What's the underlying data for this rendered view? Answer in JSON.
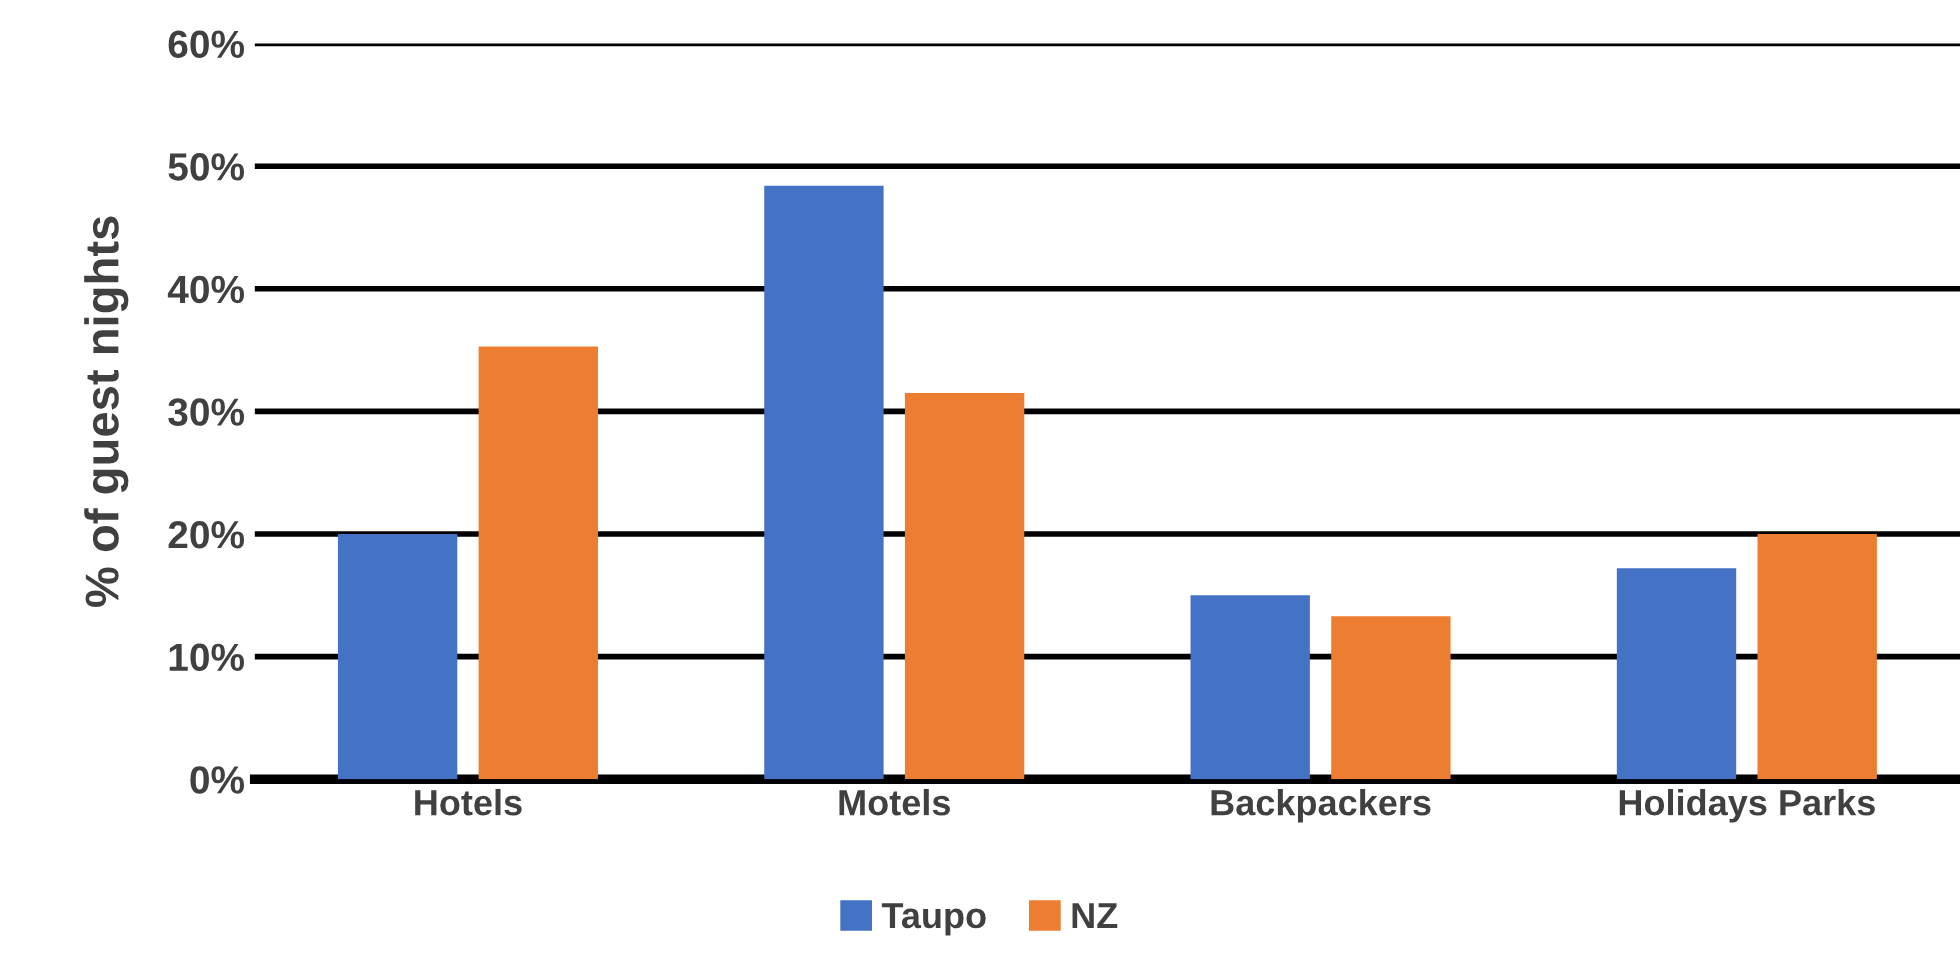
{
  "chart_data": {
    "type": "bar",
    "ylabel": "% of guest nights",
    "categories": [
      "Hotels",
      "Motels",
      "Backpackers",
      "Holidays Parks"
    ],
    "series": [
      {
        "name": "Taupo",
        "color": "#4472c4",
        "values": [
          20,
          48.4,
          15,
          17.2
        ]
      },
      {
        "name": "NZ",
        "color": "#ed7d31",
        "values": [
          35.3,
          31.5,
          13.3,
          20
        ]
      }
    ],
    "ylim": [
      0,
      60
    ],
    "yticks": [
      {
        "value": 0,
        "label": "0%"
      },
      {
        "value": 10,
        "label": "10%"
      },
      {
        "value": 20,
        "label": "20%"
      },
      {
        "value": 30,
        "label": "30%"
      },
      {
        "value": 40,
        "label": "40%"
      },
      {
        "value": 50,
        "label": "50%"
      },
      {
        "value": 60,
        "label": "60%"
      }
    ],
    "grid": "y",
    "legend": "bottom"
  }
}
